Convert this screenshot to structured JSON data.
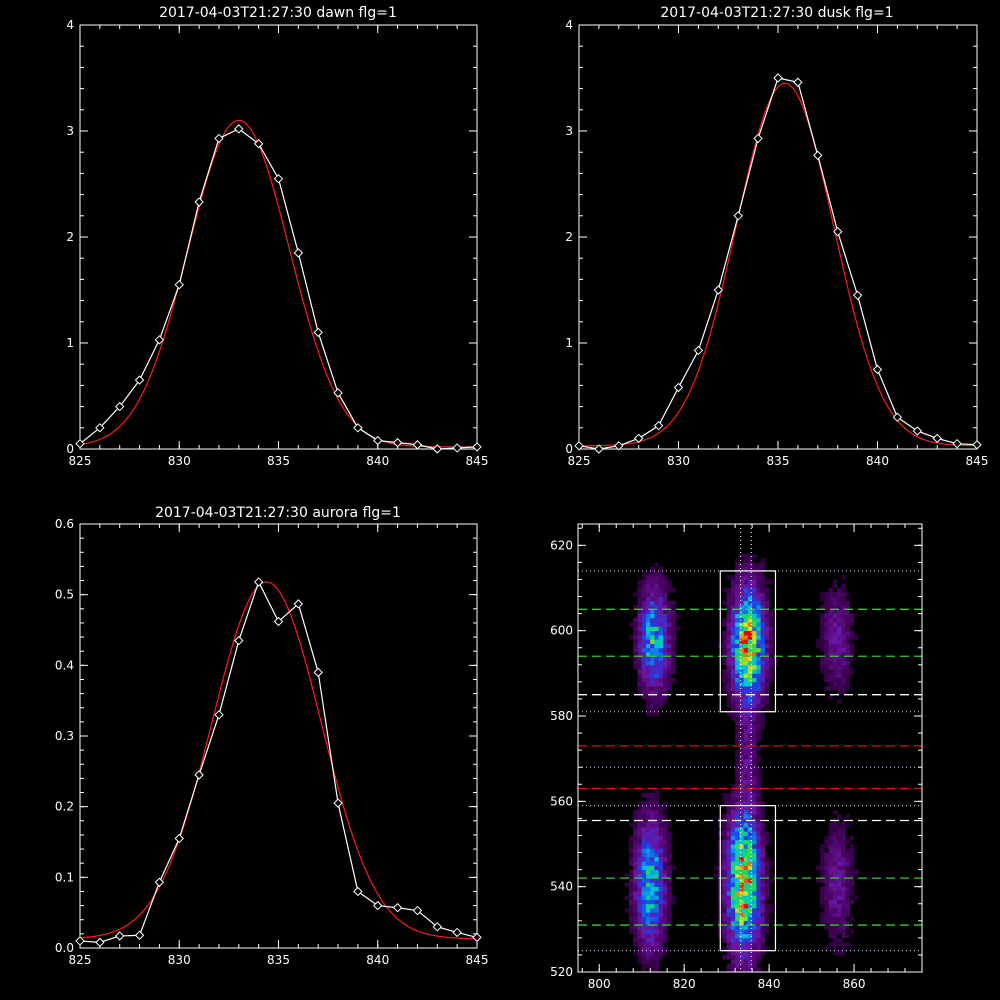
{
  "chart_data": [
    {
      "type": "line",
      "title": "2017-04-03T21:27:30 dawn flg=1",
      "xlim": [
        825,
        845
      ],
      "ylim": [
        0,
        4
      ],
      "xticks": [
        825,
        830,
        835,
        840,
        845
      ],
      "yticks": [
        0,
        1,
        2,
        3,
        4
      ],
      "series": [
        {
          "style": "diamond-line",
          "color": "#ffffff",
          "x": [
            825,
            826,
            827,
            828,
            829,
            830,
            831,
            832,
            833,
            834,
            835,
            836,
            837,
            838,
            839,
            840,
            841,
            842,
            843,
            844,
            845
          ],
          "y": [
            0.05,
            0.2,
            0.4,
            0.65,
            1.03,
            1.55,
            2.33,
            2.93,
            3.02,
            2.88,
            2.55,
            1.85,
            1.1,
            0.53,
            0.2,
            0.08,
            0.06,
            0.04,
            0.0,
            0.01,
            0.02
          ]
        },
        {
          "style": "gaussian-fit",
          "color": "#ff1a1a",
          "amplitude": 3.08,
          "center": 833.0,
          "sigma": 2.55,
          "offset": 0.02
        }
      ]
    },
    {
      "type": "line",
      "title": "2017-04-03T21:27:30 dusk flg=1",
      "xlim": [
        825,
        845
      ],
      "ylim": [
        0,
        4
      ],
      "xticks": [
        825,
        830,
        835,
        840,
        845
      ],
      "yticks": [
        0,
        1,
        2,
        3,
        4
      ],
      "series": [
        {
          "style": "diamond-line",
          "color": "#ffffff",
          "x": [
            825,
            826,
            827,
            828,
            829,
            830,
            831,
            832,
            833,
            834,
            835,
            836,
            837,
            838,
            839,
            840,
            841,
            842,
            843,
            844,
            845
          ],
          "y": [
            0.03,
            0.0,
            0.03,
            0.1,
            0.22,
            0.58,
            0.93,
            1.5,
            2.2,
            2.93,
            3.5,
            3.46,
            2.77,
            2.05,
            1.45,
            0.75,
            0.3,
            0.17,
            0.1,
            0.05,
            0.04
          ]
        },
        {
          "style": "gaussian-fit",
          "color": "#ff1a1a",
          "amplitude": 3.42,
          "center": 835.35,
          "sigma": 2.45,
          "offset": 0.03
        }
      ]
    },
    {
      "type": "line",
      "title": "2017-04-03T21:27:30 aurora flg=1",
      "xlim": [
        825,
        845
      ],
      "ylim": [
        0,
        0.6
      ],
      "xticks": [
        825,
        830,
        835,
        840,
        845
      ],
      "yticks": [
        0.0,
        0.1,
        0.2,
        0.3,
        0.4,
        0.5,
        0.6
      ],
      "series": [
        {
          "style": "diamond-line",
          "color": "#ffffff",
          "x": [
            825,
            826,
            827,
            828,
            829,
            830,
            831,
            832,
            833,
            834,
            835,
            836,
            837,
            838,
            839,
            840,
            841,
            842,
            843,
            844,
            845
          ],
          "y": [
            0.01,
            0.008,
            0.017,
            0.018,
            0.093,
            0.155,
            0.245,
            0.33,
            0.435,
            0.518,
            0.462,
            0.487,
            0.39,
            0.205,
            0.08,
            0.06,
            0.057,
            0.053,
            0.03,
            0.022,
            0.015
          ]
        },
        {
          "style": "gaussian-fit",
          "color": "#ff1a1a",
          "amplitude": 0.505,
          "center": 834.4,
          "sigma": 2.75,
          "offset": 0.013
        }
      ]
    },
    {
      "type": "heatmap",
      "title": "",
      "xlim": [
        795,
        876
      ],
      "ylim": [
        520,
        625
      ],
      "xticks": [
        800,
        820,
        840,
        860
      ],
      "yticks": [
        520,
        540,
        560,
        580,
        600,
        620
      ],
      "colormap": "rainbow",
      "blobs": [
        {
          "cx": 813,
          "cy": 598,
          "sx": 2.4,
          "sy": 8,
          "amp": 0.55
        },
        {
          "cx": 812,
          "cy": 541,
          "sx": 2.4,
          "sy": 10,
          "amp": 0.55
        },
        {
          "cx": 835,
          "cy": 597,
          "sx": 2.6,
          "sy": 9,
          "amp": 0.85
        },
        {
          "cx": 834,
          "cy": 541,
          "sx": 2.6,
          "sy": 11,
          "amp": 0.88
        },
        {
          "cx": 856,
          "cy": 598,
          "sx": 2.4,
          "sy": 8,
          "amp": 0.22
        },
        {
          "cx": 856,
          "cy": 541,
          "sx": 2.4,
          "sy": 9,
          "amp": 0.22
        },
        {
          "cx": 835,
          "cy": 570,
          "sx": 1.5,
          "sy": 10,
          "amp": 0.15
        }
      ],
      "boxes": [
        {
          "x0": 828.5,
          "x1": 841.5,
          "y0": 581,
          "y1": 614,
          "color": "#ffffff"
        },
        {
          "x0": 828.5,
          "x1": 841.5,
          "y0": 525,
          "y1": 559,
          "color": "#ffffff"
        }
      ],
      "hlines": [
        {
          "y": 614,
          "style": "dotted",
          "color": "#d8d8ff"
        },
        {
          "y": 605,
          "style": "dashed",
          "color": "#33cc33"
        },
        {
          "y": 594,
          "style": "dashed",
          "color": "#33cc33"
        },
        {
          "y": 585,
          "style": "dashed",
          "color": "#ffffff"
        },
        {
          "y": 581,
          "style": "dotted",
          "color": "#d8d8ff"
        },
        {
          "y": 573,
          "style": "dashed",
          "color": "#dd1111"
        },
        {
          "y": 568,
          "style": "dotted",
          "color": "#d8d8ff"
        },
        {
          "y": 563,
          "style": "dashed",
          "color": "#dd1111"
        },
        {
          "y": 559,
          "style": "dotted",
          "color": "#d8d8ff"
        },
        {
          "y": 555.5,
          "style": "dashed",
          "color": "#ffffff"
        },
        {
          "y": 542,
          "style": "dashed",
          "color": "#33cc33"
        },
        {
          "y": 531,
          "style": "dashed",
          "color": "#33cc33"
        },
        {
          "y": 525,
          "style": "dotted",
          "color": "#d8d8ff"
        }
      ],
      "vlines": [
        {
          "x": 833.3,
          "style": "dotted",
          "color": "#ffffff"
        },
        {
          "x": 835.8,
          "style": "dotted",
          "color": "#ffffff"
        }
      ]
    }
  ]
}
